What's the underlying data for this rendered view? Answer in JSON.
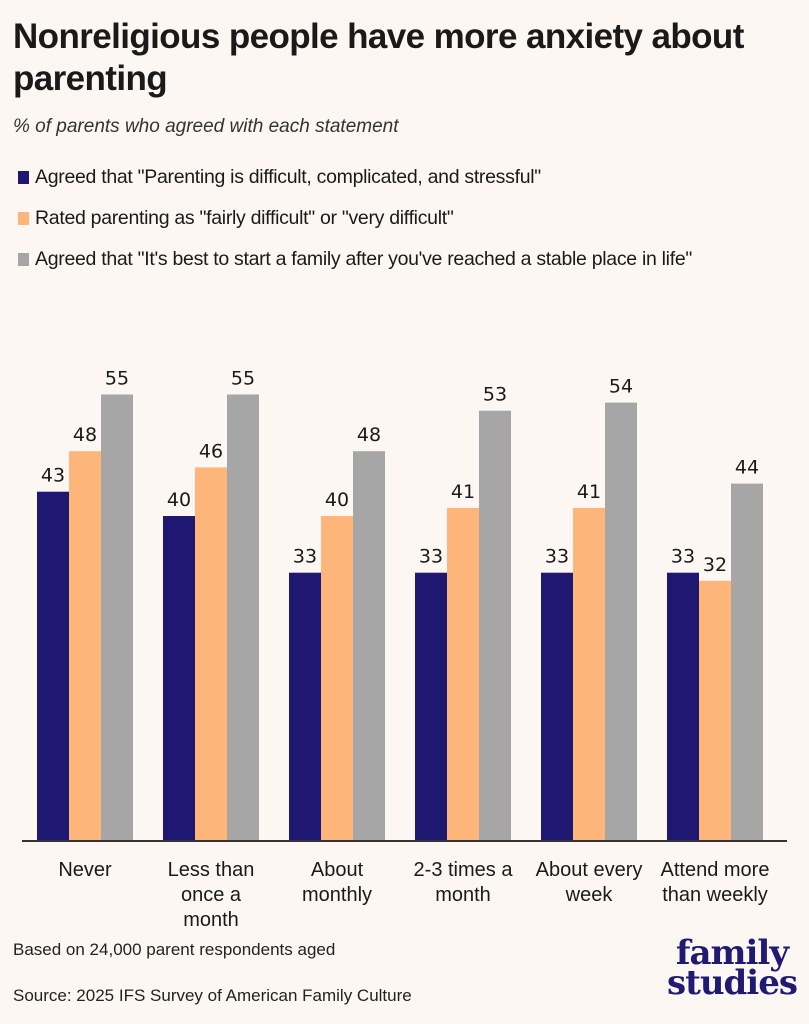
{
  "title": "Nonreligious people have more anxiety about parenting",
  "subtitle": "% of parents who agreed with each statement",
  "footnote": "Based on 24,000 parent respondents aged",
  "source": "Source: 2025 IFS Survey of American Family Culture",
  "logo": {
    "line1": "family",
    "line2": "studies"
  },
  "legend": [
    {
      "label": "Agreed that \"Parenting is difficult, complicated, and stressful\"",
      "color": "#1f1872"
    },
    {
      "label": "Rated parenting as \"fairly difficult\" or \"very difficult\"",
      "color": "#fdb57a"
    },
    {
      "label": "Agreed that \"It's best to start a family after you've reached a stable place in life\"",
      "color": "#a6a6a6"
    }
  ],
  "chart_data": {
    "type": "bar",
    "title": "Nonreligious people have more anxiety about parenting",
    "subtitle": "% of parents who agreed with each statement",
    "xlabel": "",
    "ylabel": "",
    "ylim": [
      0,
      55
    ],
    "grid": false,
    "legend_position": "top-left",
    "categories": [
      [
        "Never"
      ],
      [
        "Less than",
        "once a",
        "month"
      ],
      [
        "About",
        "monthly"
      ],
      [
        "2-3 times a",
        "month"
      ],
      [
        "About every",
        "week"
      ],
      [
        "Attend more",
        "than weekly"
      ]
    ],
    "series": [
      {
        "name": "Agreed that \"Parenting is difficult, complicated, and stressful\"",
        "color": "#1f1872",
        "values": [
          43,
          40,
          33,
          33,
          33,
          33
        ]
      },
      {
        "name": "Rated parenting as \"fairly difficult\" or \"very difficult\"",
        "color": "#fdb57a",
        "values": [
          48,
          46,
          40,
          41,
          41,
          32
        ]
      },
      {
        "name": "Agreed that \"It's best to start a family after you've reached a stable place in life\"",
        "color": "#a6a6a6",
        "values": [
          55,
          55,
          48,
          53,
          54,
          44
        ]
      }
    ]
  }
}
